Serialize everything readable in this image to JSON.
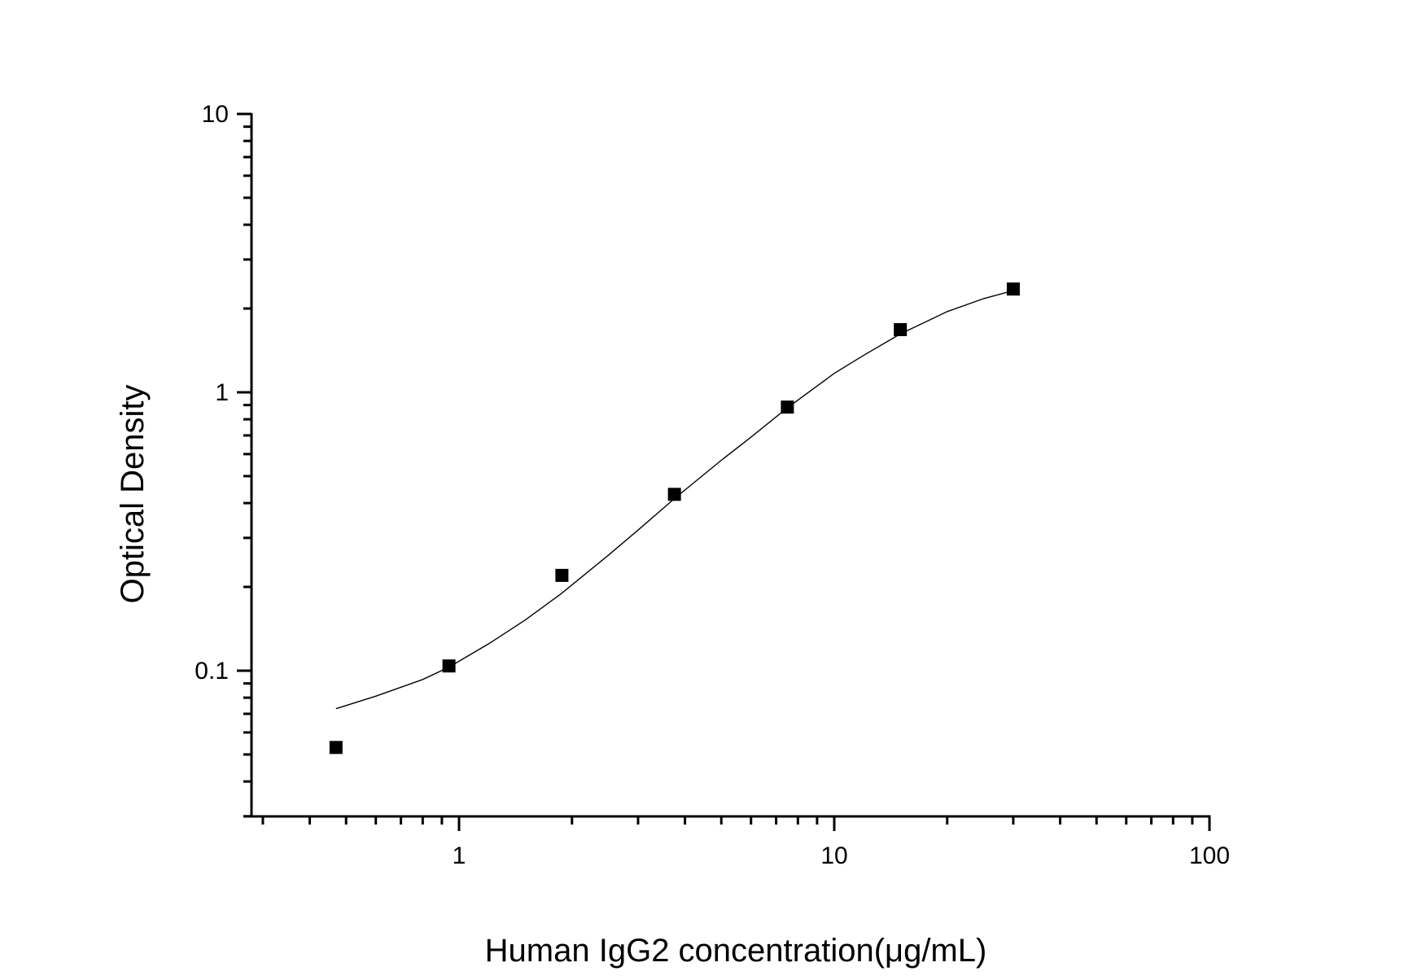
{
  "chart_data": {
    "type": "scatter",
    "title": "",
    "xlabel": "Human IgG2 concentration(μg/mL)",
    "ylabel": "Optical Density",
    "xscale": "log",
    "yscale": "log",
    "xlim": [
      0.3,
      100
    ],
    "ylim": [
      0.03,
      10
    ],
    "x_ticks": [
      1,
      10,
      100
    ],
    "x_tick_labels": [
      "1",
      "10",
      "100"
    ],
    "y_ticks": [
      0.1,
      1,
      10
    ],
    "y_tick_labels": [
      "0.1",
      "1",
      "10"
    ],
    "grid": false,
    "legend": null,
    "series": [
      {
        "name": "Standard points",
        "marker": "square",
        "color": "#000000",
        "x": [
          0.47,
          0.94,
          1.88,
          3.75,
          7.5,
          15,
          30
        ],
        "y": [
          0.053,
          0.104,
          0.22,
          0.43,
          0.885,
          1.68,
          2.35
        ]
      },
      {
        "name": "Fitted curve",
        "type": "line",
        "color": "#000000",
        "x": [
          0.47,
          0.6,
          0.8,
          0.94,
          1.2,
          1.5,
          1.88,
          2.5,
          3.0,
          3.75,
          5.0,
          6.0,
          7.5,
          10,
          12,
          15,
          20,
          25,
          30
        ],
        "y": [
          0.073,
          0.081,
          0.093,
          0.103,
          0.125,
          0.152,
          0.19,
          0.26,
          0.32,
          0.415,
          0.57,
          0.69,
          0.88,
          1.17,
          1.36,
          1.62,
          1.95,
          2.17,
          2.32
        ]
      }
    ]
  }
}
